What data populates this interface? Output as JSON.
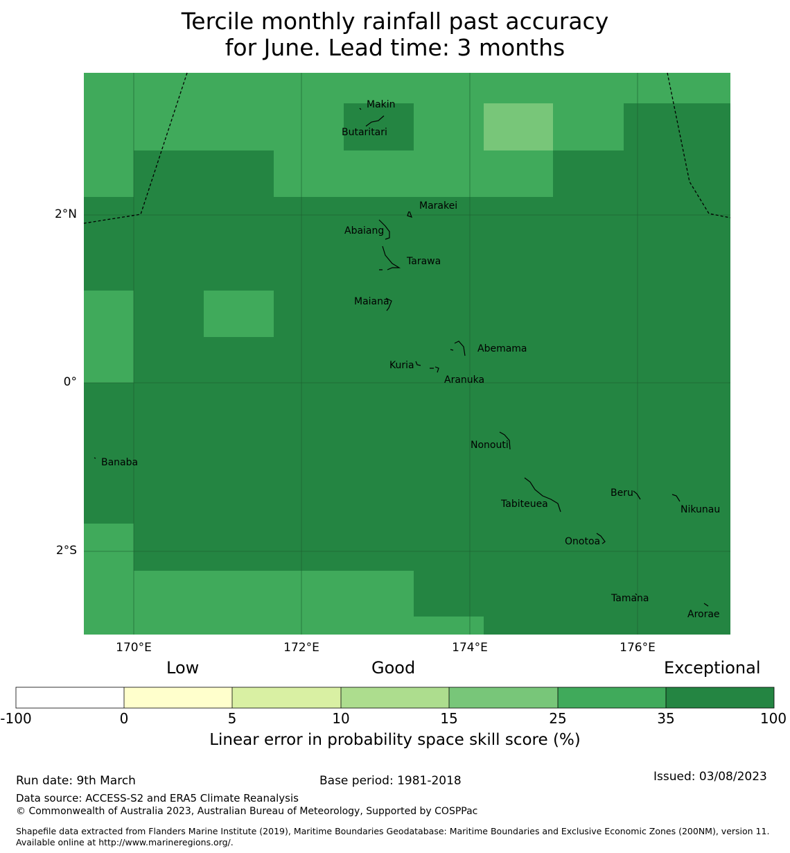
{
  "title": {
    "line1": "Tercile monthly rainfall past accuracy",
    "line2": "for June. Lead time: 3 months"
  },
  "map": {
    "lat_labels": [
      "2°N",
      "0°",
      "2°S"
    ],
    "lon_labels": [
      "170°E",
      "172°E",
      "174°E",
      "176°E"
    ],
    "places": [
      "Makin",
      "Butaritari",
      "Marakei",
      "Abaiang",
      "Tarawa",
      "Maiana",
      "Abemama",
      "Kuria",
      "Aranuka",
      "Nonouti",
      "Banaba",
      "Beru",
      "Nikunau",
      "Tabiteuea",
      "Onotoa",
      "Tamana",
      "Arorae"
    ]
  },
  "colors": {
    "cat_100": "#248542",
    "cat_35": "#40aa5b",
    "cat_25": "#78c679",
    "cat_15": "#addd8e",
    "cat_10": "#d9f0a3",
    "cat_5": "#ffffcc",
    "cat_0": "#ffffff"
  },
  "colorbar": {
    "categories": [
      "Low",
      "Good",
      "Exceptional"
    ],
    "ticks": [
      "-100",
      "0",
      "5",
      "10",
      "15",
      "25",
      "35",
      "100"
    ],
    "title": "Linear error in probability space skill score (%)"
  },
  "footer": {
    "run_date": "Run date: 9th March",
    "base_period": "Base period: 1981-2018",
    "issued": "Issued: 03/08/2023",
    "data_source": "Data source: ACCESS-S2 and ERA5 Climate Reanalysis",
    "copyright": "© Commonwealth of Australia 2023, Australian Bureau of Meteorology, Supported by COSPPac",
    "shapefile": "Shapefile data extracted from Flanders Marine Institute (2019), Maritime Boundaries Geodatabase: Maritime Boundaries and Exclusive Economic Zones (200NM), version 11. Available online at http://www.marineregions.org/."
  }
}
